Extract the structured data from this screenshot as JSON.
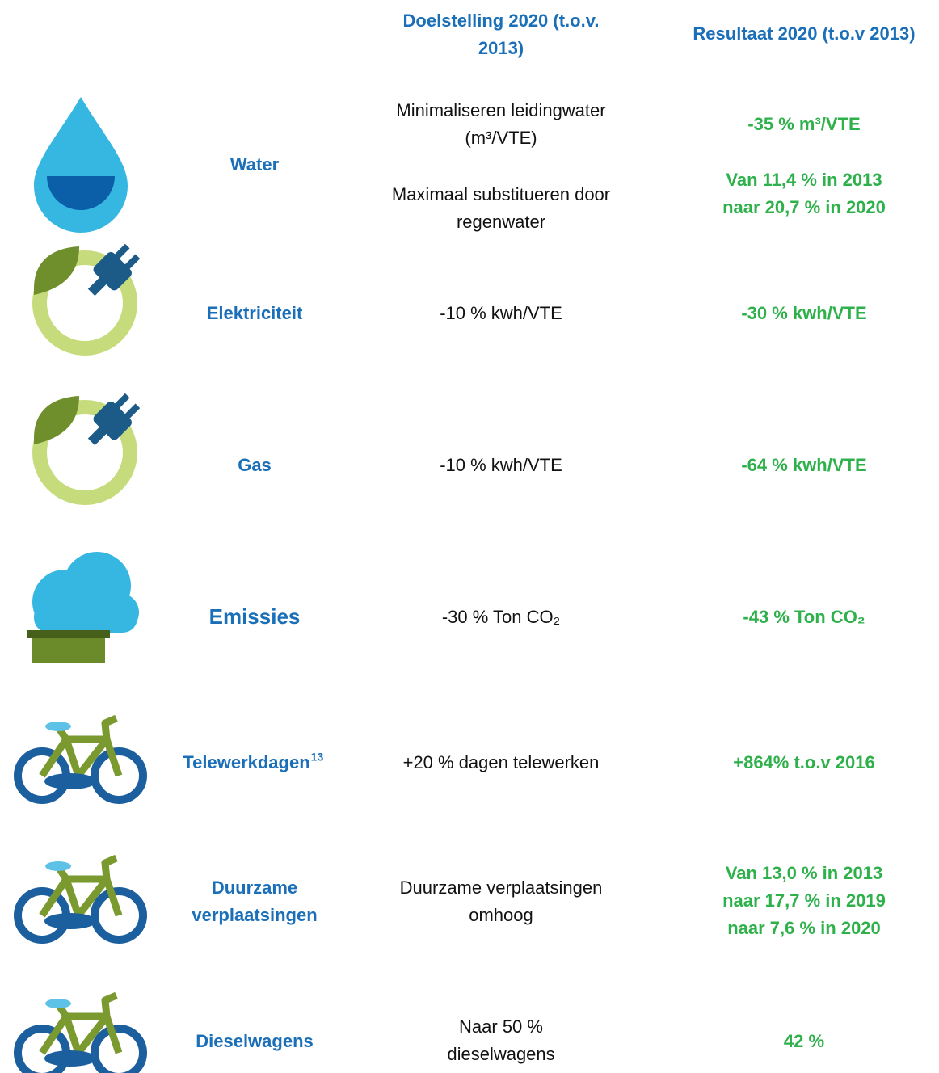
{
  "header": {
    "columns": [
      [
        "Doelstelling 2020 (t.o.v.",
        "2013)"
      ],
      [
        "Resultaat 2020 (t.o.v 2013)"
      ]
    ]
  },
  "rows": [
    {
      "label": [
        "Water"
      ],
      "targets": [
        [
          "Minimaliseren leidingwater",
          "(m³/VTE)"
        ],
        [
          "Maximaal substitueren door",
          "regenwater"
        ]
      ],
      "results": [
        [
          "-35 % m³/VTE"
        ],
        [
          "Van 11,4 % in 2013",
          "naar 20,7 % in 2020"
        ]
      ]
    },
    {
      "label": [
        "Elektriciteit"
      ],
      "targets": [
        [
          "-10 % kwh/VTE"
        ]
      ],
      "results": [
        [
          "-30 % kwh/VTE"
        ]
      ]
    },
    {
      "label": [
        "Gas"
      ],
      "targets": [
        [
          "-10 % kwh/VTE"
        ]
      ],
      "results": [
        [
          "-64 % kwh/VTE"
        ]
      ]
    },
    {
      "label": [
        "Emissies"
      ],
      "targets": [
        [
          "-30 % Ton CO₂"
        ]
      ],
      "results": [
        [
          "-43 % Ton CO₂"
        ]
      ]
    },
    {
      "label": [
        "Telewerkdagen"
      ],
      "footnote": "13",
      "targets": [
        [
          "+20 % dagen telewerken"
        ]
      ],
      "results": [
        [
          "+864% t.o.v 2016"
        ]
      ]
    },
    {
      "label": [
        "Duurzame",
        "verplaatsingen"
      ],
      "targets": [
        [
          "Duurzame verplaatsingen",
          "omhoog"
        ]
      ],
      "results": [
        [
          "Van 13,0 % in 2013",
          "naar 17,7 % in 2019",
          "naar 7,6 % in 2020"
        ]
      ]
    },
    {
      "label": [
        "Dieselwagens"
      ],
      "targets": [
        [
          "Naar 50 %",
          "dieselwagens"
        ]
      ],
      "results": [
        [
          "42 %"
        ]
      ]
    }
  ]
}
